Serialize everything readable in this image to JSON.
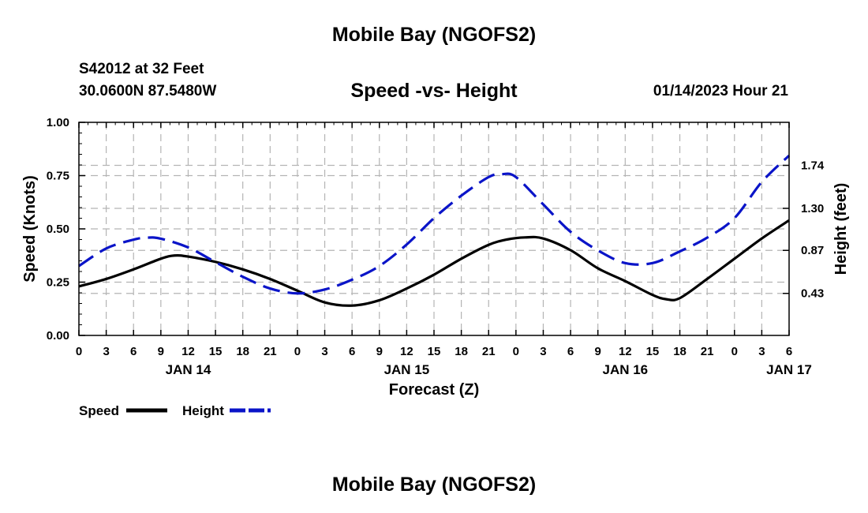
{
  "header": {
    "title": "Mobile Bay (NGOFS2)",
    "station": "S42012 at 32 Feet",
    "coords": "30.0600N  87.5480W",
    "subtitle": "Speed -vs- Height",
    "datetime": "01/14/2023 Hour 21",
    "footer_title": "Mobile Bay (NGOFS2)"
  },
  "colors": {
    "speed": "#000000",
    "height": "#0a14c8",
    "grid": "#b4b4b4"
  },
  "chart_data": {
    "type": "line",
    "xlabel": "Forecast (Z)",
    "x_ticks": [
      "0",
      "3",
      "6",
      "9",
      "12",
      "15",
      "18",
      "21",
      "0",
      "3",
      "6",
      "9",
      "12",
      "15",
      "18",
      "21",
      "0",
      "3",
      "6",
      "9",
      "12",
      "15",
      "18",
      "21",
      "0",
      "3",
      "6"
    ],
    "day_labels": [
      {
        "label": "JAN 14",
        "hour": 12
      },
      {
        "label": "JAN 15",
        "hour": 36
      },
      {
        "label": "JAN 16",
        "hour": 60
      },
      {
        "label": "JAN 17",
        "hour": 78
      }
    ],
    "xlim": [
      0,
      78
    ],
    "y_left": {
      "label": "Speed (Knots)",
      "ticks": [
        "0.00",
        "0.25",
        "0.50",
        "0.75",
        "1.00"
      ],
      "lim": [
        0,
        1
      ]
    },
    "y_right": {
      "label": "Height (feet)",
      "ticks": [
        "0.43",
        "0.87",
        "1.30",
        "1.74"
      ],
      "lim": [
        0.0,
        2.18
      ]
    },
    "series": [
      {
        "name": "Speed",
        "axis": "left",
        "style": "solid",
        "x": [
          0,
          3,
          6,
          9,
          10.5,
          12,
          15,
          18,
          21,
          24,
          27,
          30,
          33,
          36,
          39,
          42,
          45,
          47,
          49,
          51,
          54,
          57,
          60,
          63,
          64.5,
          66,
          69,
          72,
          75,
          78
        ],
        "values": [
          0.23,
          0.265,
          0.31,
          0.36,
          0.375,
          0.37,
          0.345,
          0.31,
          0.265,
          0.21,
          0.155,
          0.14,
          0.165,
          0.22,
          0.285,
          0.36,
          0.425,
          0.45,
          0.46,
          0.455,
          0.4,
          0.315,
          0.255,
          0.19,
          0.17,
          0.175,
          0.265,
          0.36,
          0.455,
          0.54
        ]
      },
      {
        "name": "Height",
        "axis": "right",
        "style": "dashed",
        "x": [
          0,
          3,
          6,
          7.5,
          9,
          12,
          15,
          18,
          21,
          24,
          27,
          30,
          33,
          36,
          39,
          42,
          45,
          46.5,
          48,
          51,
          54,
          57,
          60,
          63,
          66,
          69,
          72,
          75,
          78
        ],
        "values": [
          0.71,
          0.89,
          0.98,
          1.0,
          0.99,
          0.9,
          0.75,
          0.6,
          0.48,
          0.43,
          0.47,
          0.57,
          0.71,
          0.93,
          1.2,
          1.43,
          1.62,
          1.65,
          1.62,
          1.34,
          1.06,
          0.87,
          0.74,
          0.74,
          0.86,
          1.0,
          1.2,
          1.57,
          1.84
        ]
      }
    ],
    "legend": {
      "position": "bottom-left",
      "items": [
        "Speed",
        "Height"
      ]
    }
  }
}
